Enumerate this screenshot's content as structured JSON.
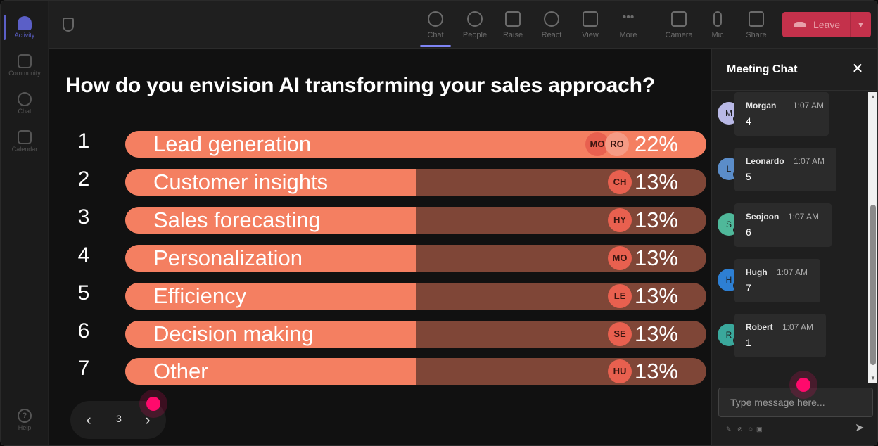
{
  "rail": {
    "items": [
      {
        "label": "Activity",
        "icon": "bell-icon",
        "active": true
      },
      {
        "label": "Community",
        "icon": "community-icon"
      },
      {
        "label": "Chat",
        "icon": "chat-icon"
      },
      {
        "label": "Calendar",
        "icon": "calendar-icon"
      }
    ],
    "help": "Help"
  },
  "toolbar": {
    "chat": "Chat",
    "people": "People",
    "raise": "Raise",
    "react": "React",
    "view": "View",
    "more": "More",
    "camera": "Camera",
    "mic": "Mic",
    "share": "Share",
    "leave": "Leave"
  },
  "poll": {
    "question": "How do you envision AI transforming your sales approach?",
    "options": [
      {
        "num": "1",
        "label": "Lead generation",
        "percent": "22%",
        "fill": 1.0,
        "avatars": [
          "MO",
          "RO"
        ]
      },
      {
        "num": "2",
        "label": "Customer insights",
        "percent": "13%",
        "fill": 0.5,
        "avatars": [
          "CH"
        ]
      },
      {
        "num": "3",
        "label": "Sales forecasting",
        "percent": "13%",
        "fill": 0.5,
        "avatars": [
          "HY"
        ]
      },
      {
        "num": "4",
        "label": "Personalization",
        "percent": "13%",
        "fill": 0.5,
        "avatars": [
          "MO"
        ]
      },
      {
        "num": "5",
        "label": "Efficiency",
        "percent": "13%",
        "fill": 0.5,
        "avatars": [
          "LE"
        ]
      },
      {
        "num": "6",
        "label": "Decision making",
        "percent": "13%",
        "fill": 0.5,
        "avatars": [
          "SE"
        ]
      },
      {
        "num": "7",
        "label": "Other",
        "percent": "13%",
        "fill": 0.5,
        "avatars": [
          "HU"
        ]
      }
    ]
  },
  "pager": {
    "page": "3"
  },
  "chat": {
    "title": "Meeting Chat",
    "messages": [
      {
        "initial": "M",
        "name": "Morgan",
        "time": "1:07 AM",
        "text": "4",
        "color": "#b9b9e6"
      },
      {
        "initial": "L",
        "name": "Leonardo",
        "time": "1:07 AM",
        "text": "5",
        "color": "#5b8dc9"
      },
      {
        "initial": "S",
        "name": "Seojoon",
        "time": "1:07 AM",
        "text": "6",
        "color": "#4fb89a"
      },
      {
        "initial": "H",
        "name": "Hugh",
        "time": "1:07 AM",
        "text": "7",
        "color": "#2d7fd3"
      },
      {
        "initial": "R",
        "name": "Robert",
        "time": "1:07 AM",
        "text": "1",
        "color": "#3aa89c"
      }
    ],
    "placeholder": "Type message here..."
  },
  "colors": {
    "bar_fill": "#f47f61",
    "bar_track": "#7f4637",
    "leave": "#c4314b",
    "accent": "#5b5fc7",
    "cursor": "#ff0a6c"
  }
}
